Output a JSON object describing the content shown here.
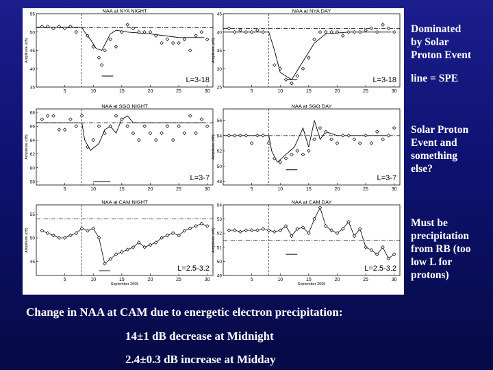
{
  "annotations": {
    "row1": [
      "Dominated",
      "by Solar",
      "Proton Event"
    ],
    "row1_line": "line = SPE",
    "row2": [
      "Solar Proton",
      "Event and",
      "something",
      "else?"
    ],
    "row3": [
      "Must be",
      "precipitation",
      "from RB (too",
      "low L for",
      "protons)"
    ]
  },
  "caption": {
    "heading": "Change in NAA at CAM due to energetic electron precipitation:",
    "line1": "14±1 dB decrease at Midnight",
    "line2": "2.4±0.3 dB increase at Midday"
  },
  "chart_data": [
    {
      "type": "scatter",
      "title": "NAA at NYA NIGHT",
      "ylabel": "Amplitude (dB)",
      "xlabel": "",
      "xlim": [
        0,
        31
      ],
      "ylim": [
        35,
        55
      ],
      "yticks": [
        35,
        40,
        45,
        50,
        55
      ],
      "xticks": [
        5,
        10,
        15,
        20,
        25,
        30
      ],
      "annotation": "L=3-18",
      "event_day": 8,
      "points": [
        [
          1,
          51.5
        ],
        [
          2,
          51.5
        ],
        [
          3,
          51
        ],
        [
          4,
          51.5
        ],
        [
          5,
          51
        ],
        [
          6,
          51.5
        ],
        [
          7,
          50
        ],
        [
          9,
          49
        ],
        [
          10,
          46
        ],
        [
          11,
          43
        ],
        [
          11.5,
          41
        ],
        [
          12,
          45
        ],
        [
          13,
          48
        ],
        [
          14,
          46
        ],
        [
          15,
          50
        ],
        [
          16,
          52
        ],
        [
          17,
          51
        ],
        [
          18,
          50
        ],
        [
          19,
          50
        ],
        [
          20,
          50
        ],
        [
          21,
          49
        ],
        [
          22,
          47
        ],
        [
          23,
          48
        ],
        [
          24,
          47
        ],
        [
          25,
          47
        ],
        [
          26,
          48
        ],
        [
          27,
          45
        ],
        [
          28,
          49
        ],
        [
          29,
          50
        ],
        [
          30,
          48
        ]
      ],
      "line": [
        [
          0,
          51.3
        ],
        [
          8,
          51.3
        ],
        [
          8.5,
          50
        ],
        [
          9.5,
          48
        ],
        [
          10.5,
          45.5
        ],
        [
          11.5,
          45
        ],
        [
          13,
          49.5
        ],
        [
          14,
          50.5
        ],
        [
          16,
          50
        ],
        [
          20,
          49.5
        ],
        [
          25,
          48.5
        ],
        [
          29.5,
          48.5
        ]
      ],
      "dashdot": 51.2,
      "bar": [
        11.5,
        13.5,
        38
      ]
    },
    {
      "type": "scatter",
      "title": "NAA at NYA DAY",
      "ylabel": "Amplitude (dB)",
      "xlabel": "",
      "xlim": [
        0,
        31
      ],
      "ylim": [
        25,
        45
      ],
      "yticks": [
        25,
        30,
        35,
        40,
        45
      ],
      "xticks": [
        5,
        10,
        15,
        20,
        25,
        30
      ],
      "annotation": "L=3-18",
      "event_day": 8,
      "points": [
        [
          1,
          41
        ],
        [
          2,
          40
        ],
        [
          3,
          40.5
        ],
        [
          4,
          40
        ],
        [
          5,
          40
        ],
        [
          6,
          40.5
        ],
        [
          7,
          40
        ],
        [
          9,
          31
        ],
        [
          10,
          30
        ],
        [
          11,
          27
        ],
        [
          12,
          26
        ],
        [
          13,
          28
        ],
        [
          14,
          30
        ],
        [
          15,
          33
        ],
        [
          16,
          38
        ],
        [
          17,
          40
        ],
        [
          18,
          40
        ],
        [
          19,
          40
        ],
        [
          20,
          40
        ],
        [
          21,
          39
        ],
        [
          22,
          40
        ],
        [
          23,
          40
        ],
        [
          24,
          40
        ],
        [
          25,
          40.5
        ],
        [
          26,
          41
        ],
        [
          27,
          40
        ],
        [
          28,
          42
        ],
        [
          29,
          41
        ],
        [
          30,
          40
        ]
      ],
      "line": [
        [
          0,
          40
        ],
        [
          8,
          40
        ],
        [
          9,
          35
        ],
        [
          10,
          29
        ],
        [
          11,
          28
        ],
        [
          12,
          27
        ],
        [
          14,
          32
        ],
        [
          16,
          37
        ],
        [
          18,
          39.5
        ],
        [
          22,
          40
        ],
        [
          26,
          40
        ],
        [
          29.5,
          40
        ]
      ],
      "dashdot": 41,
      "bar": [
        11,
        13,
        27
      ]
    },
    {
      "type": "scatter",
      "title": "NAA at SGO NIGHT",
      "ylabel": "Amplitude (dB)",
      "xlabel": "",
      "xlim": [
        0,
        31
      ],
      "ylim": [
        57.5,
        68.5
      ],
      "yticks": [
        58,
        60,
        62,
        64,
        66,
        68
      ],
      "yticklabels": [
        "58",
        "60",
        "62",
        "64",
        "66",
        "68"
      ],
      "xticks": [
        5,
        10,
        15,
        20,
        25,
        30
      ],
      "annotation": "L=3-7",
      "event_day": 8,
      "points": [
        [
          1,
          67
        ],
        [
          2,
          67.5
        ],
        [
          3,
          67.5
        ],
        [
          4,
          65.5
        ],
        [
          5,
          65.5
        ],
        [
          6,
          67
        ],
        [
          7,
          66
        ],
        [
          8,
          67.5
        ],
        [
          9,
          63
        ],
        [
          10,
          64
        ],
        [
          11,
          66
        ],
        [
          12,
          65
        ],
        [
          13,
          66
        ],
        [
          14,
          67.5
        ],
        [
          15,
          67
        ],
        [
          16,
          66
        ],
        [
          17,
          65
        ],
        [
          18,
          64
        ],
        [
          19,
          66
        ],
        [
          20,
          65
        ],
        [
          21,
          64
        ],
        [
          22,
          65
        ],
        [
          23,
          66
        ],
        [
          24,
          64
        ],
        [
          25,
          66
        ],
        [
          26,
          65
        ],
        [
          27,
          67.5
        ],
        [
          28,
          65
        ],
        [
          29,
          67
        ],
        [
          30,
          66
        ]
      ],
      "line": [
        [
          0,
          66.5
        ],
        [
          8,
          66.5
        ],
        [
          8.5,
          64
        ],
        [
          9.5,
          62.5
        ],
        [
          11,
          63.5
        ],
        [
          12,
          65.5
        ],
        [
          13,
          66
        ],
        [
          14,
          65
        ],
        [
          15,
          67
        ],
        [
          16,
          67.5
        ],
        [
          17,
          66.5
        ],
        [
          20,
          66.5
        ],
        [
          29.5,
          66.5
        ]
      ],
      "dashdot": 66.5,
      "bar": [
        10,
        13,
        58
      ]
    },
    {
      "type": "scatter",
      "title": "NAA at SGO DAY",
      "ylabel": "Amplitude (dB)",
      "xlabel": "",
      "xlim": [
        0,
        31
      ],
      "ylim": [
        47.5,
        57.5
      ],
      "yticks": [
        48,
        50,
        52,
        54,
        56
      ],
      "yticklabels": [
        "48",
        "50",
        "52",
        "54",
        "56"
      ],
      "xticks": [
        5,
        10,
        15,
        20,
        25,
        30
      ],
      "annotation": "L=3-7",
      "event_day": 8,
      "points": [
        [
          1,
          54
        ],
        [
          2,
          54
        ],
        [
          3,
          54
        ],
        [
          4,
          54
        ],
        [
          5,
          53
        ],
        [
          6,
          54
        ],
        [
          7,
          54
        ],
        [
          8,
          53
        ],
        [
          9,
          51
        ],
        [
          10,
          50.5
        ],
        [
          11,
          51
        ],
        [
          12,
          51.5
        ],
        [
          13,
          52
        ],
        [
          14,
          51.5
        ],
        [
          15,
          52
        ],
        [
          16,
          53.5
        ],
        [
          17,
          55
        ],
        [
          18,
          54.5
        ],
        [
          19,
          53.5
        ],
        [
          20,
          53
        ],
        [
          21,
          54
        ],
        [
          22,
          54
        ],
        [
          23,
          53.5
        ],
        [
          24,
          53
        ],
        [
          25,
          54
        ],
        [
          26,
          53
        ],
        [
          27,
          54.5
        ],
        [
          28,
          53.5
        ],
        [
          29,
          54
        ],
        [
          30,
          55
        ]
      ],
      "line": [
        [
          0,
          54
        ],
        [
          8,
          54
        ],
        [
          8.5,
          52
        ],
        [
          9.5,
          50.5
        ],
        [
          11,
          51.5
        ],
        [
          12.5,
          52.5
        ],
        [
          14,
          55
        ],
        [
          15,
          52.5
        ],
        [
          16,
          56
        ],
        [
          17,
          53.5
        ],
        [
          18,
          54.5
        ],
        [
          20,
          54
        ],
        [
          26,
          54
        ],
        [
          29.5,
          54
        ]
      ],
      "dashdot": 54,
      "bar": [
        11,
        13,
        49.5
      ]
    },
    {
      "type": "line",
      "title": "NAA at CAM NIGHT",
      "ylabel": "Amplitude (dB)",
      "xlabel": "September 2005",
      "xlim": [
        0,
        31
      ],
      "ylim": [
        42,
        57
      ],
      "yticks": [
        45,
        50,
        55
      ],
      "xticks": [
        5,
        10,
        15,
        20,
        25,
        30
      ],
      "annotation": "L=2.5-3.2",
      "event_day": 8,
      "points": [
        [
          1,
          51.5
        ],
        [
          2,
          51
        ],
        [
          3,
          50.5
        ],
        [
          4,
          50
        ],
        [
          5,
          50
        ],
        [
          6,
          50.5
        ],
        [
          7,
          51
        ],
        [
          8,
          52
        ],
        [
          9,
          51.5
        ],
        [
          10,
          52
        ],
        [
          11,
          50
        ],
        [
          12,
          44.5
        ],
        [
          13,
          45.5
        ],
        [
          14,
          46.5
        ],
        [
          15,
          47
        ],
        [
          16,
          47.5
        ],
        [
          17,
          48
        ],
        [
          18,
          49
        ],
        [
          19,
          48
        ],
        [
          20,
          48.5
        ],
        [
          21,
          49
        ],
        [
          22,
          50
        ],
        [
          23,
          50.5
        ],
        [
          24,
          51
        ],
        [
          25,
          50.5
        ],
        [
          26,
          51.5
        ],
        [
          27,
          52
        ],
        [
          28,
          52.5
        ],
        [
          29,
          53
        ],
        [
          30,
          52.5
        ]
      ],
      "dashdot": 54,
      "bar": [
        11,
        13,
        43
      ]
    },
    {
      "type": "line",
      "title": "NAA at CAM DAY",
      "ylabel": "Amplitude (dB)",
      "xlabel": "September 2005",
      "xlim": [
        0,
        31
      ],
      "ylim": [
        49,
        54
      ],
      "yticks": [
        49,
        50,
        51,
        52,
        53,
        54
      ],
      "xticks": [
        5,
        10,
        15,
        20,
        25,
        30
      ],
      "annotation": "L=2.5-3.2",
      "event_day": 8,
      "points": [
        [
          1,
          52.2
        ],
        [
          2,
          52.2
        ],
        [
          3,
          52.1
        ],
        [
          4,
          52.2
        ],
        [
          5,
          52.2
        ],
        [
          6,
          52.2
        ],
        [
          7,
          52.3
        ],
        [
          8,
          52.2
        ],
        [
          9,
          52.1
        ],
        [
          10,
          52.2
        ],
        [
          11,
          52.5
        ],
        [
          12,
          51.8
        ],
        [
          13,
          52.3
        ],
        [
          14,
          52.4
        ],
        [
          15,
          52
        ],
        [
          16,
          53
        ],
        [
          17,
          53.8
        ],
        [
          18,
          52.5
        ],
        [
          19,
          52.2
        ],
        [
          20,
          52
        ],
        [
          21,
          52.3
        ],
        [
          22,
          52.8
        ],
        [
          23,
          51.8
        ],
        [
          24,
          52.3
        ],
        [
          25,
          51
        ],
        [
          26,
          50.8
        ],
        [
          27,
          50.5
        ],
        [
          28,
          51
        ],
        [
          29,
          50.2
        ],
        [
          30,
          50.5
        ]
      ],
      "dashdot": 51.5,
      "bar": [
        11,
        13,
        50.5
      ]
    }
  ]
}
